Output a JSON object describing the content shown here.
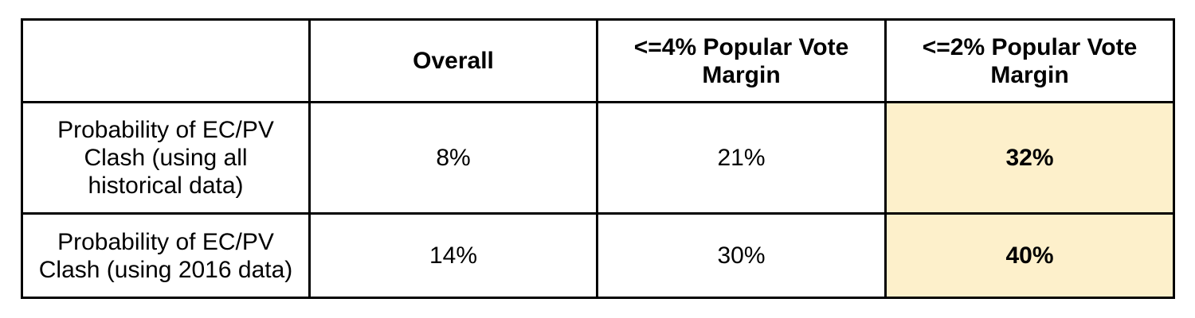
{
  "table": {
    "header": [
      "Overall",
      "<=4% Popular Vote Margin",
      "<=2% Popular Vote Margin"
    ],
    "rows": [
      [
        "Probability of EC/PV Clash (using all historical data)",
        "8%",
        "21%",
        "32%"
      ],
      [
        "Probability of EC/PV Clash (using 2016 data)",
        "14%",
        "30%",
        "40%"
      ]
    ]
  }
}
